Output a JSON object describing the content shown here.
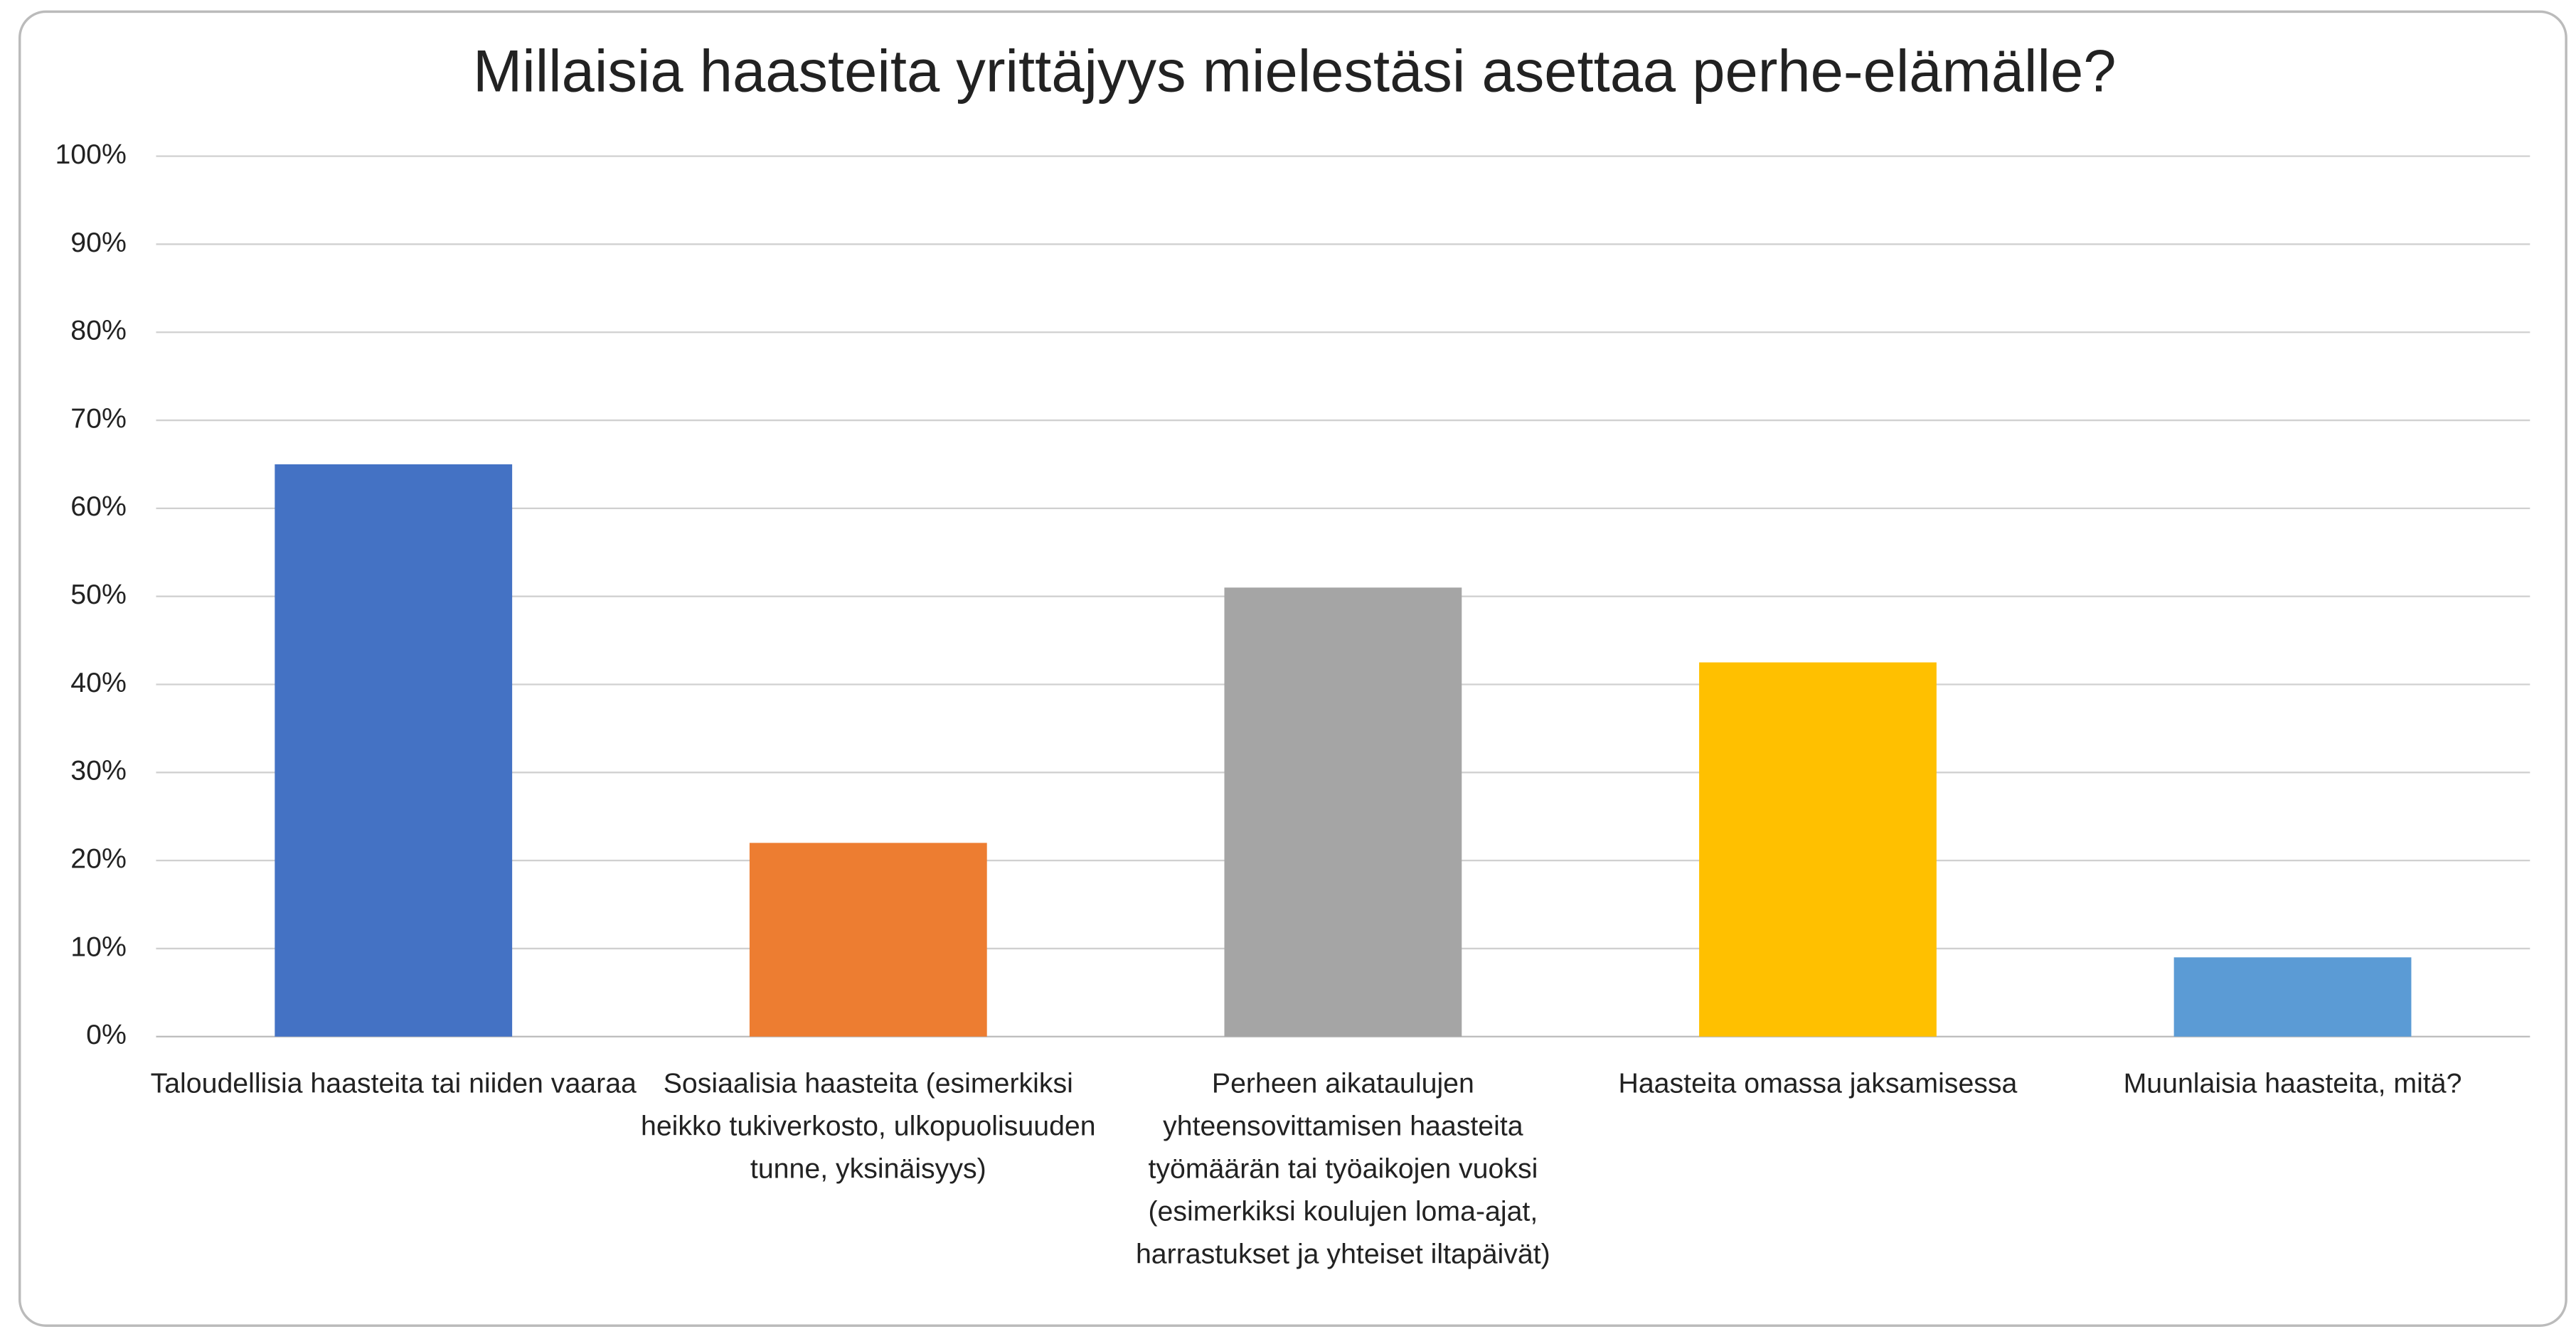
{
  "chart_data": {
    "type": "bar",
    "title": "Millaisia haasteita yrittäjyys mielestäsi asettaa perhe-elämälle?",
    "categories": [
      "Taloudellisia haasteita tai niiden vaaraa",
      "Sosiaalisia haasteita (esimerkiksi heikko tukiverkosto, ulkopuolisuuden tunne, yksinäisyys)",
      "Perheen aikataulujen yhteensovittamisen haasteita työmäärän tai työaikojen vuoksi (esimerkiksi koulujen loma-ajat, harrastukset ja yhteiset iltapäivät)",
      "Haasteita omassa jaksamisessa",
      "Muunlaisia haasteita, mitä?"
    ],
    "values": [
      65,
      22,
      51,
      42.5,
      9
    ],
    "colors": [
      "#4472c4",
      "#ed7d31",
      "#a5a5a5",
      "#ffc000",
      "#5b9bd5"
    ],
    "ylim": [
      0,
      100
    ],
    "yticks": [
      {
        "value": 0,
        "label": "0%"
      },
      {
        "value": 10,
        "label": "10%"
      },
      {
        "value": 20,
        "label": "20%"
      },
      {
        "value": 30,
        "label": "30%"
      },
      {
        "value": 40,
        "label": "40%"
      },
      {
        "value": 50,
        "label": "50%"
      },
      {
        "value": 60,
        "label": "60%"
      },
      {
        "value": 70,
        "label": "70%"
      },
      {
        "value": 80,
        "label": "80%"
      },
      {
        "value": 90,
        "label": "90%"
      },
      {
        "value": 100,
        "label": "100%"
      }
    ],
    "grid": true
  }
}
